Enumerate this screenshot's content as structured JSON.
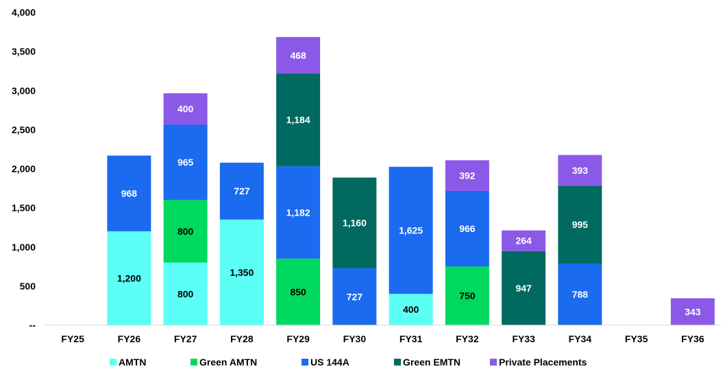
{
  "chart_data": {
    "type": "bar",
    "stacked": true,
    "title": "",
    "xlabel": "",
    "ylabel": "",
    "ylim": [
      0,
      4000
    ],
    "yticks": [
      0,
      500,
      1000,
      1500,
      2000,
      2500,
      3000,
      3500,
      4000
    ],
    "ytick_labels": [
      "--",
      "500",
      "1,000",
      "1,500",
      "2,000",
      "2,500",
      "3,000",
      "3,500",
      "4,000"
    ],
    "categories": [
      "FY25",
      "FY26",
      "FY27",
      "FY28",
      "FY29",
      "FY30",
      "FY31",
      "FY32",
      "FY33",
      "FY34",
      "FY35",
      "FY36"
    ],
    "legend_position": "bottom",
    "grid": false,
    "series": [
      {
        "name": "AMTN",
        "color": "#5CFFF6",
        "label_color": "#000000",
        "values": [
          0,
          1200,
          800,
          1350,
          0,
          0,
          400,
          0,
          0,
          0,
          0,
          0
        ]
      },
      {
        "name": "Green AMTN",
        "color": "#00D95F",
        "label_color": "#000000",
        "values": [
          0,
          0,
          800,
          0,
          850,
          0,
          0,
          750,
          0,
          0,
          0,
          0
        ]
      },
      {
        "name": "US 144A",
        "color": "#1A6BF0",
        "label_color": "#ffffff",
        "values": [
          0,
          968,
          965,
          727,
          1182,
          727,
          1625,
          966,
          0,
          788,
          0,
          0
        ]
      },
      {
        "name": "Green EMTN",
        "color": "#006A60",
        "label_color": "#ffffff",
        "values": [
          0,
          0,
          0,
          0,
          1184,
          1160,
          0,
          0,
          947,
          995,
          0,
          0
        ]
      },
      {
        "name": "Private Placements",
        "color": "#8B59E8",
        "label_color": "#ffffff",
        "values": [
          0,
          0,
          400,
          0,
          468,
          0,
          0,
          392,
          264,
          393,
          0,
          343
        ]
      }
    ]
  }
}
